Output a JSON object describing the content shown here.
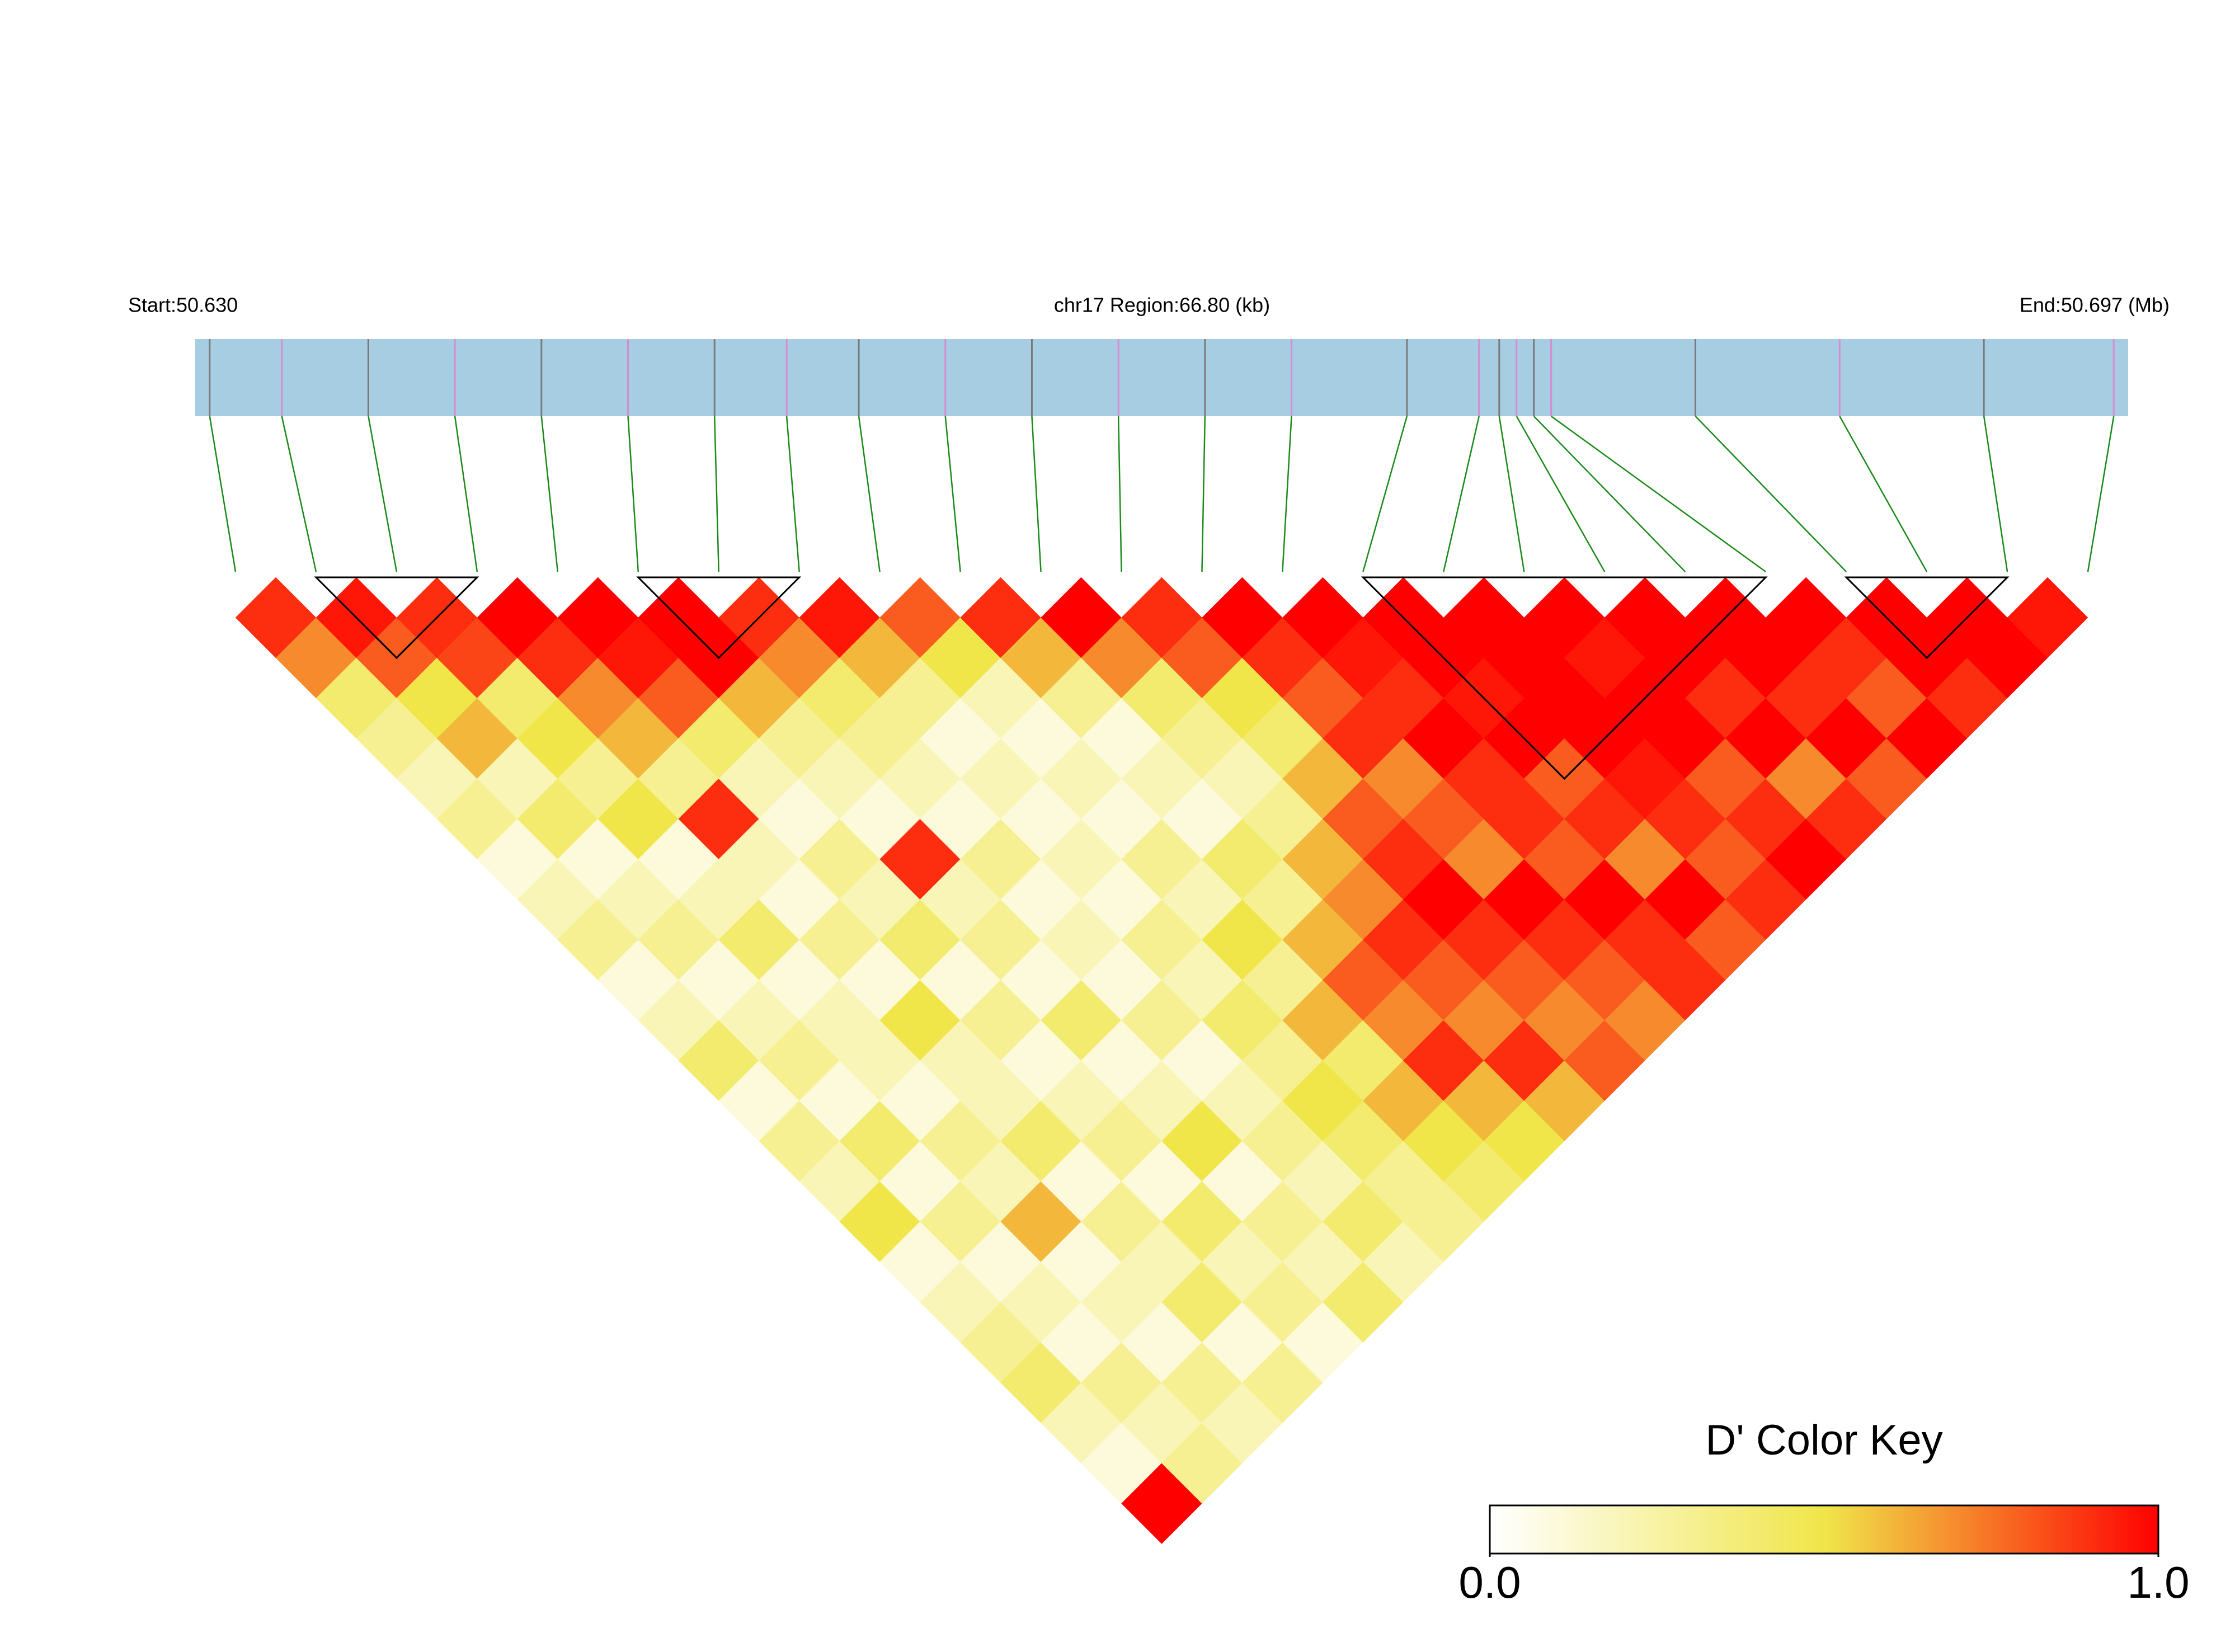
{
  "chart_data": {
    "type": "ld-heatmap",
    "start_label": "Start:50.630",
    "region_label": "chr17 Region:66.80 (kb)",
    "end_label": "End:50.697 (Mb)",
    "xlim": [
      50.63,
      50.697
    ],
    "positions": [
      50.6305,
      50.633,
      50.636,
      50.639,
      50.642,
      50.645,
      50.648,
      50.6505,
      50.653,
      50.656,
      50.659,
      50.662,
      50.665,
      50.668,
      50.672,
      50.6745,
      50.6752,
      50.6758,
      50.6764,
      50.677,
      50.682,
      50.687,
      50.692,
      50.6965
    ],
    "dprime": [
      [
        0.9
      ],
      [
        0.7,
        0.95
      ],
      [
        0.4,
        0.8,
        0.9
      ],
      [
        0.3,
        0.5,
        0.85,
        1.0
      ],
      [
        0.2,
        0.6,
        0.4,
        0.9,
        1.0
      ],
      [
        0.3,
        0.2,
        0.5,
        0.7,
        0.95,
        1.0
      ],
      [
        0.1,
        0.4,
        0.3,
        0.6,
        0.8,
        1.0,
        0.9
      ],
      [
        0.2,
        0.1,
        0.5,
        0.3,
        0.4,
        0.6,
        0.7,
        0.95
      ],
      [
        0.3,
        0.2,
        0.1,
        0.9,
        0.2,
        0.3,
        0.4,
        0.6,
        0.8
      ],
      [
        0.1,
        0.3,
        0.2,
        0.2,
        0.1,
        0.2,
        0.3,
        0.3,
        0.5,
        0.9
      ],
      [
        0.2,
        0.1,
        0.4,
        0.1,
        0.3,
        0.1,
        0.2,
        0.1,
        0.2,
        0.6,
        1.0
      ],
      [
        0.4,
        0.2,
        0.1,
        0.3,
        0.2,
        0.9,
        0.1,
        0.2,
        0.1,
        0.3,
        0.7,
        0.9
      ],
      [
        0.1,
        0.3,
        0.2,
        0.1,
        0.4,
        0.2,
        0.3,
        0.1,
        0.2,
        0.1,
        0.4,
        0.8,
        1.0
      ],
      [
        0.3,
        0.1,
        0.2,
        0.5,
        0.1,
        0.3,
        0.1,
        0.2,
        0.1,
        0.2,
        0.3,
        0.5,
        0.9,
        1.0
      ],
      [
        0.2,
        0.4,
        0.1,
        0.2,
        0.3,
        0.1,
        0.2,
        0.1,
        0.3,
        0.1,
        0.2,
        0.4,
        0.8,
        0.95,
        1.0
      ],
      [
        0.5,
        0.1,
        0.3,
        0.2,
        0.1,
        0.4,
        0.1,
        0.3,
        0.2,
        0.4,
        0.3,
        0.6,
        0.9,
        0.9,
        1.0,
        1.0
      ],
      [
        0.1,
        0.3,
        0.2,
        0.4,
        0.2,
        0.1,
        0.3,
        0.2,
        0.5,
        0.3,
        0.6,
        0.8,
        0.7,
        1.0,
        0.95,
        1.0,
        1.0
      ],
      [
        0.2,
        0.1,
        0.6,
        0.1,
        0.3,
        0.2,
        0.1,
        0.4,
        0.3,
        0.6,
        0.7,
        0.9,
        0.8,
        0.9,
        1.0,
        1.0,
        0.95,
        1.0
      ],
      [
        0.3,
        0.2,
        0.1,
        0.3,
        0.1,
        0.5,
        0.2,
        0.3,
        0.6,
        0.8,
        0.9,
        1.0,
        0.7,
        0.9,
        0.8,
        1.0,
        1.0,
        1.0,
        1.0
      ],
      [
        0.4,
        0.1,
        0.2,
        0.2,
        0.4,
        0.1,
        0.3,
        0.5,
        0.4,
        0.7,
        0.8,
        0.9,
        1.0,
        0.8,
        0.9,
        0.95,
        1.0,
        0.9,
        1.0,
        1.0
      ],
      [
        0.2,
        0.3,
        0.1,
        0.4,
        0.2,
        0.3,
        0.2,
        0.4,
        0.6,
        0.9,
        0.7,
        0.8,
        0.9,
        1.0,
        0.7,
        0.9,
        0.8,
        1.0,
        0.9,
        0.9,
        1.0
      ],
      [
        0.1,
        0.2,
        0.3,
        0.1,
        0.3,
        0.2,
        0.4,
        0.3,
        0.5,
        0.6,
        0.9,
        0.7,
        0.8,
        0.9,
        1.0,
        0.8,
        0.9,
        0.7,
        1.0,
        0.8,
        1.0,
        1.0
      ],
      [
        1.0,
        0.3,
        0.2,
        0.3,
        0.1,
        0.4,
        0.2,
        0.3,
        0.4,
        0.5,
        0.6,
        0.8,
        0.7,
        0.9,
        0.8,
        0.9,
        1.0,
        0.9,
        0.8,
        1.0,
        0.9,
        1.0,
        0.95
      ]
    ],
    "blocks": [
      [
        1,
        3
      ],
      [
        5,
        7
      ],
      [
        14,
        19
      ],
      [
        20,
        22
      ]
    ],
    "bar_color": "#a6cde2",
    "link_color": "#1a8a1a",
    "colors": [
      "#ffffff",
      "#f0e64a",
      "#ff0000"
    ],
    "colorbar": {
      "title": "D' Color Key",
      "ticks": [
        {
          "value": 0,
          "label": "0.0"
        },
        {
          "value": 1,
          "label": "1.0"
        }
      ]
    }
  }
}
